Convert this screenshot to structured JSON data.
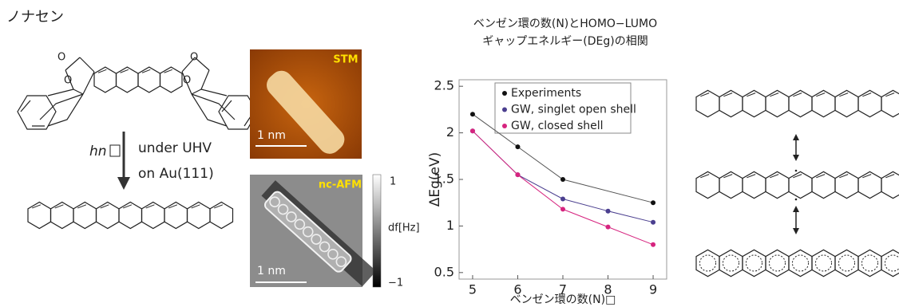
{
  "chart_data": {
    "type": "line",
    "title": [
      "ベンゼン環の数(N)とHOMO−LUMO",
      "ギャップエネルギー(DEg)の相関"
    ],
    "x_label": "ベンゼン環の数(N)□",
    "y_label": "ΔEg(eV)",
    "x": [
      5,
      6,
      7,
      8,
      9
    ],
    "series": [
      {
        "name": "Experiments",
        "color": "#111111",
        "line_color": "#555555",
        "x": [
          5,
          6,
          7,
          9
        ],
        "values": [
          2.2,
          1.85,
          1.5,
          1.25
        ]
      },
      {
        "name": "GW, singlet open shell",
        "color": "#4b3f8f",
        "line_color": "#4b3f8f",
        "values": [
          2.02,
          1.55,
          1.29,
          1.16,
          1.04
        ]
      },
      {
        "name": "GW, closed shell",
        "color": "#d6247f",
        "line_color": "#d6247f",
        "values": [
          2.02,
          1.55,
          1.18,
          0.99,
          0.8
        ]
      }
    ],
    "xlim": [
      4.7,
      9.3
    ],
    "xticks": [
      5,
      6,
      7,
      8,
      9
    ],
    "ylim": [
      0.43,
      2.57
    ],
    "yticks": [
      0.5,
      1,
      1.5,
      2,
      {
        "value": 2.5,
        "label": "2.5"
      }
    ],
    "legend": "top-right"
  },
  "figure": {
    "name": "ノナセン",
    "hv": "hn",
    "condition1": "under UHV",
    "condition2": "on Au(111)",
    "oxygens": [
      "O",
      "O",
      "O",
      "O"
    ],
    "stm_label": "STM",
    "stm_scale": "1 nm",
    "afm_label": "nc-AFM",
    "afm_scale": "1 nm",
    "colorbar_max": "1",
    "colorbar_unit": "df[Hz]",
    "colorbar_min": "−1"
  }
}
